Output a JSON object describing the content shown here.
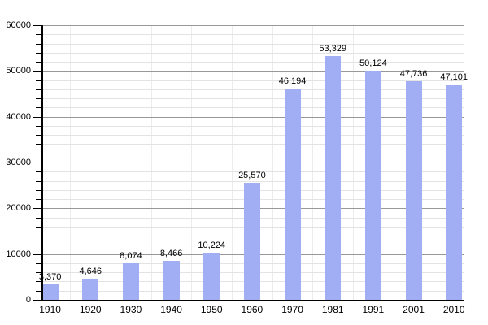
{
  "chart_data": {
    "type": "bar",
    "title": "",
    "xlabel": "",
    "ylabel": "",
    "categories": [
      "1910",
      "1920",
      "1930",
      "1940",
      "1950",
      "1960",
      "1970",
      "1981",
      "1991",
      "2001",
      "2010"
    ],
    "values": [
      3370,
      4646,
      8074,
      8466,
      10224,
      25570,
      46194,
      53329,
      50124,
      47736,
      47101
    ],
    "value_labels": [
      "3,370",
      "4,646",
      "8,074",
      "8,466",
      "10,224",
      "25,570",
      "46,194",
      "53,329",
      "50,124",
      "47,736",
      "47,101"
    ],
    "ylim": [
      0,
      60000
    ],
    "y_major_step": 10000,
    "y_minor_step": 2000,
    "y_tick_labels": [
      "60000",
      "50000",
      "40000",
      "30000",
      "20000",
      "10000",
      "0"
    ],
    "grid": true,
    "legend": "none"
  },
  "colors": {
    "bar_fill": "#a2aef3",
    "major_gridline": "#989898",
    "minor_gridline": "#e3e3e3",
    "category_boundary_gridline": "#ececec",
    "axis": "#000000",
    "label_text": "#000000",
    "background": "#ffffff"
  }
}
